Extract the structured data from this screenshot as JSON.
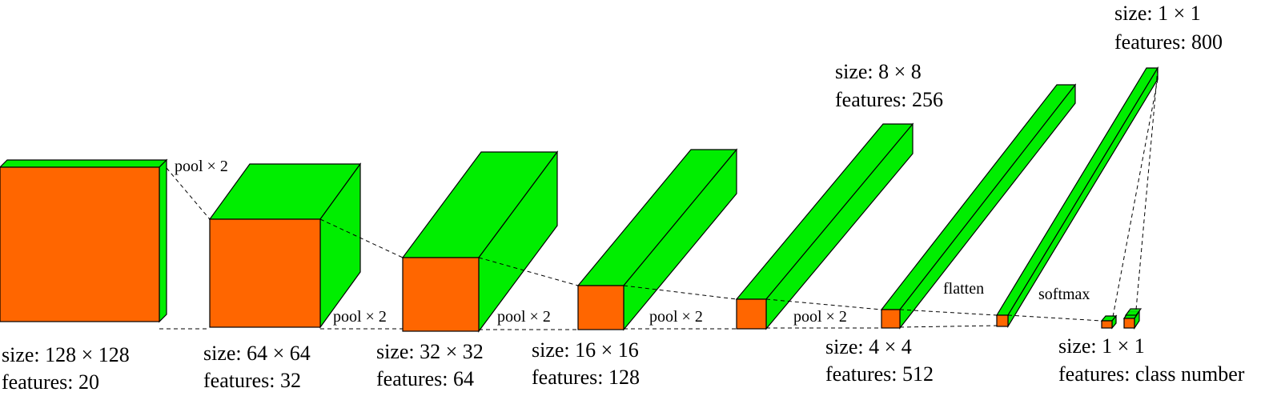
{
  "colors": {
    "front": "#ff6600",
    "side": "#00ee00",
    "edge": "#000000"
  },
  "layers": [
    {
      "size_label": "size: 128 × 128",
      "features_label": "features: 20"
    },
    {
      "size_label": "size: 64 × 64",
      "features_label": "features: 32"
    },
    {
      "size_label": "size: 32 × 32",
      "features_label": "features: 64"
    },
    {
      "size_label": "size: 16 × 16",
      "features_label": "features: 128"
    },
    {
      "size_label": "size: 8 × 8",
      "features_label": "features: 256"
    },
    {
      "size_label": "size: 4 × 4",
      "features_label": "features: 512"
    },
    {
      "size_label": "size: 1 × 1",
      "features_label": "features: 800"
    },
    {
      "size_label": "size: 1 × 1",
      "features_label": "features: class number"
    }
  ],
  "operations": {
    "pool_top": "pool × 2",
    "pool_1": "pool × 2",
    "pool_2": "pool × 2",
    "pool_3": "pool × 2",
    "pool_4": "pool × 2",
    "flatten": "flatten",
    "softmax": "softmax"
  }
}
